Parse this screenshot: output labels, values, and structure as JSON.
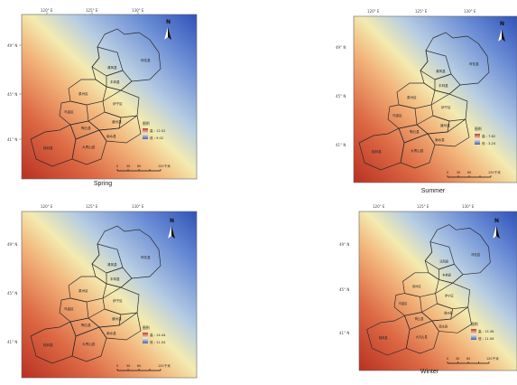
{
  "axis": {
    "lon": [
      "120° E",
      "125° E",
      "130° E"
    ],
    "lat": [
      "49° N",
      "45° N",
      "41° N"
    ]
  },
  "north_label": "N",
  "districts": [
    "呼伦县",
    "清风县",
    "丰林县",
    "泉州区",
    "伊宁区",
    "乌金区",
    "道州县",
    "南水县",
    "桃林县",
    "大青山县",
    "陶丘县"
  ],
  "legend": {
    "title": "图例",
    "high_label": "高",
    "low_label": "低"
  },
  "scale": {
    "ticks": [
      "0",
      "30",
      "60",
      "",
      "120"
    ],
    "unit": "千米"
  },
  "colors": {
    "high": "#c0392b",
    "mid": "#f2e8a0",
    "low": "#3a62c4"
  },
  "panels": [
    {
      "id": "spring",
      "title": "Spring",
      "high": "12.52",
      "low": "9.02"
    },
    {
      "id": "summer",
      "title": "Summer",
      "high": "7.62",
      "low": "3.24"
    },
    {
      "id": "autumn",
      "title": "",
      "high": "14.44",
      "low": "11.54"
    },
    {
      "id": "winter",
      "title": "Winter",
      "high": "15.36",
      "low": "11.56"
    }
  ]
}
